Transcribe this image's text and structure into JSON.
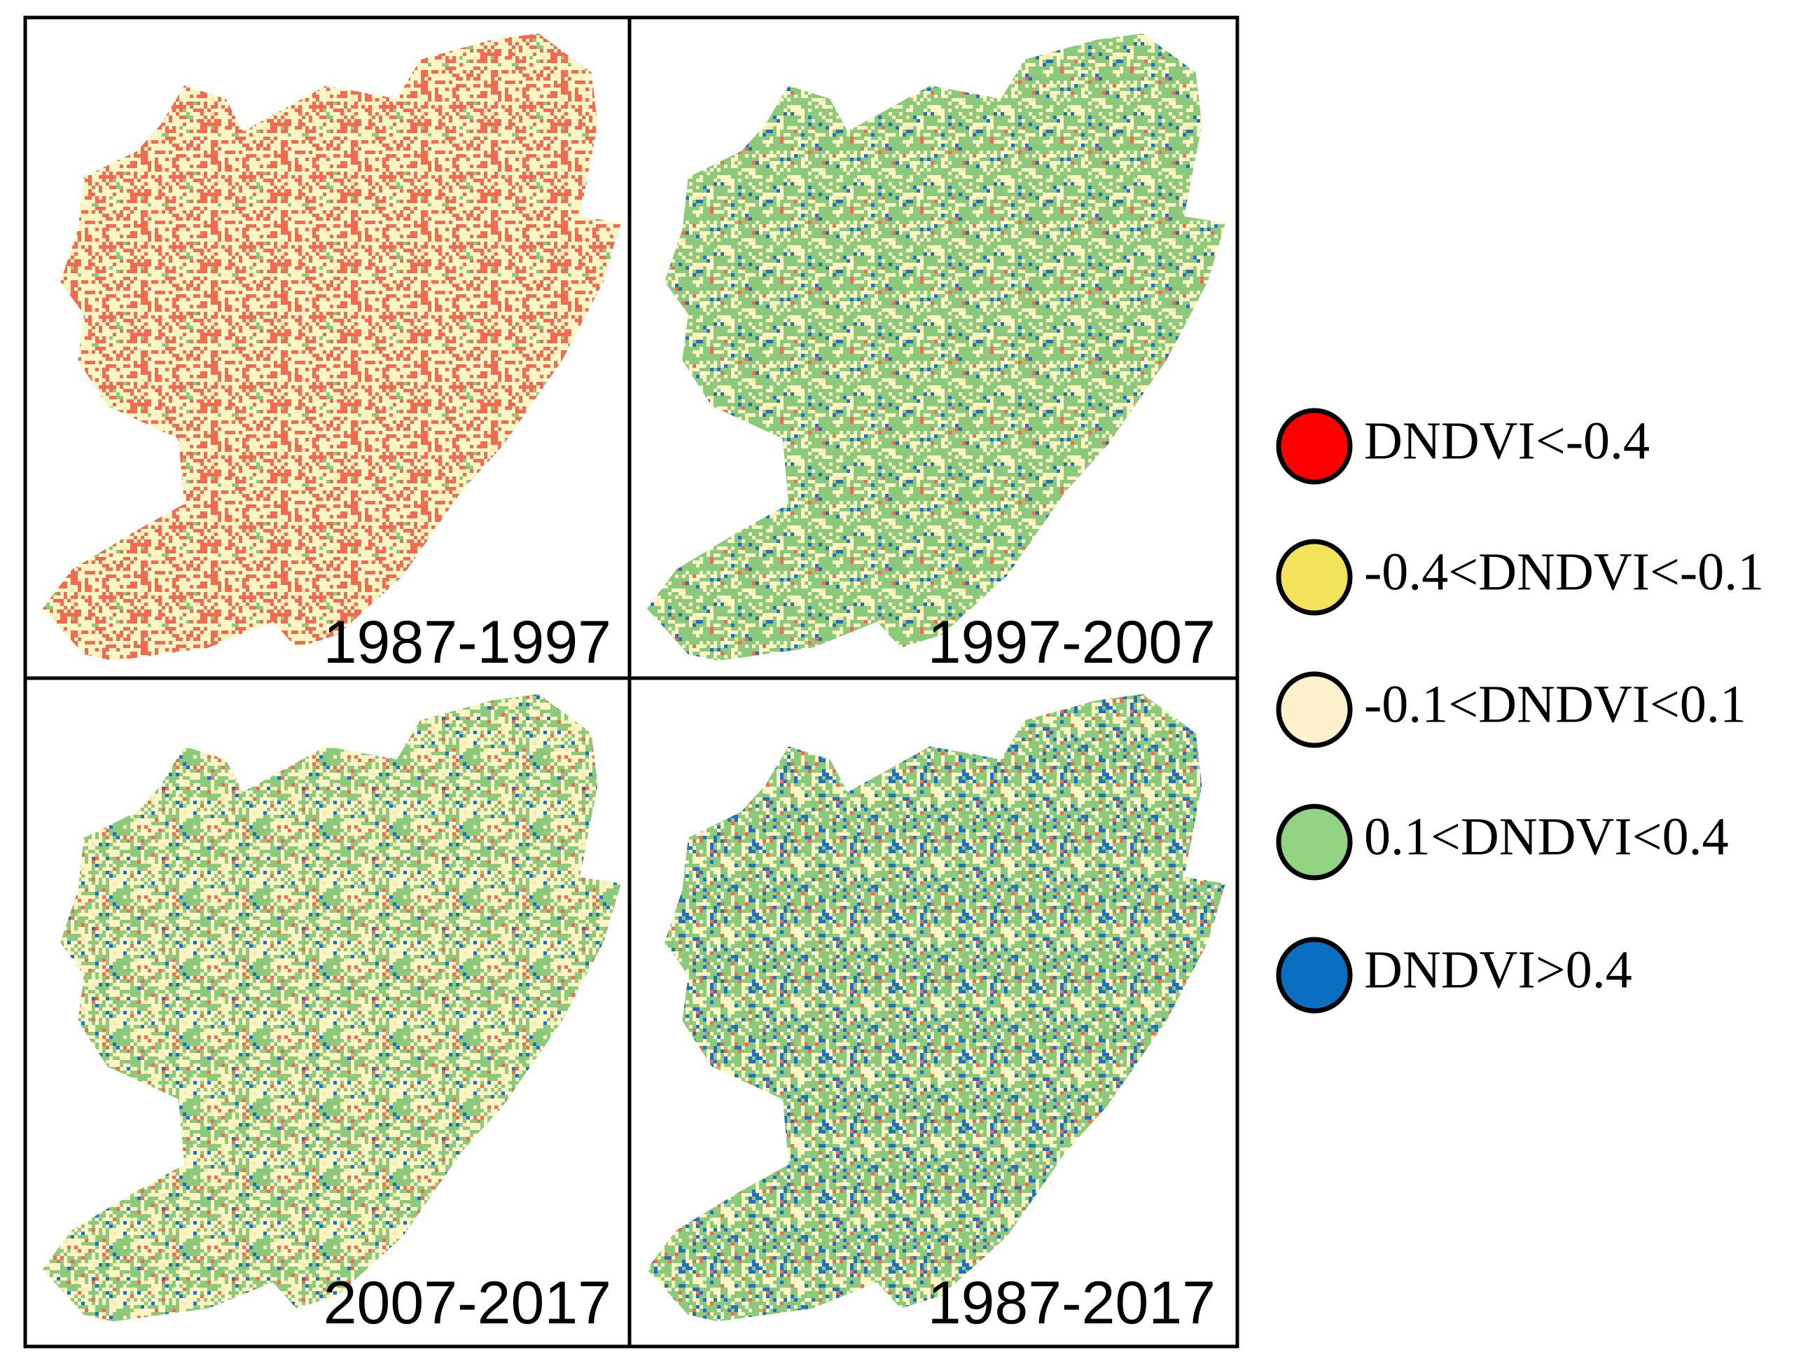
{
  "panels": [
    {
      "label": "1987-1997"
    },
    {
      "label": "1997-2007"
    },
    {
      "label": "2007-2017"
    },
    {
      "label": "1987-2017"
    }
  ],
  "legend": [
    {
      "label": "DNDVI<-0.4",
      "color": "#ff0000"
    },
    {
      "label": "-0.4<DNDVI<-0.1",
      "color": "#f2e35a"
    },
    {
      "label": "-0.1<DNDVI<0.1",
      "color": "#fdf1cc"
    },
    {
      "label": "0.1<DNDVI<0.4",
      "color": "#91d283"
    },
    {
      "label": "DNDVI>0.4",
      "color": "#0a6fc0"
    }
  ]
}
